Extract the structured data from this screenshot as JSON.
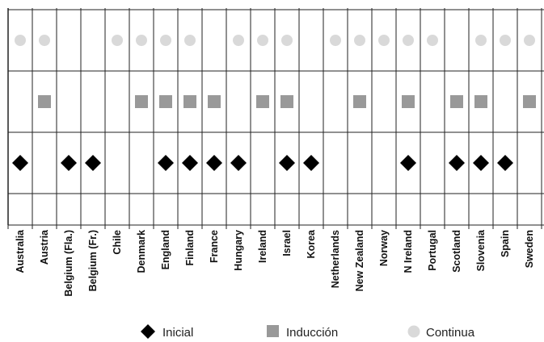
{
  "chart_data": {
    "type": "scatter",
    "categories": [
      "Australia",
      "Austria",
      "Belgium (Fla.)",
      "Belgium (Fr.)",
      "Chile",
      "Denmark",
      "England",
      "Finland",
      "France",
      "Hungary",
      "Ireland",
      "Israel",
      "Korea",
      "Netherlands",
      "New Zealand",
      "Norway",
      "N Ireland",
      "Portugal",
      "Scotland",
      "Slovenia",
      "Spain",
      "Sweden"
    ],
    "series": [
      {
        "name": "Inicial",
        "marker": "diamond",
        "color": "#000000",
        "values": [
          1,
          0,
          1,
          1,
          0,
          0,
          1,
          1,
          1,
          1,
          0,
          1,
          1,
          0,
          0,
          0,
          1,
          0,
          1,
          1,
          1,
          0
        ]
      },
      {
        "name": "Inducción",
        "marker": "square",
        "color": "#999999",
        "values": [
          0,
          1,
          0,
          0,
          0,
          1,
          1,
          1,
          1,
          0,
          1,
          1,
          0,
          0,
          1,
          0,
          1,
          0,
          1,
          1,
          0,
          1
        ]
      },
      {
        "name": "Continua",
        "marker": "circle",
        "color": "#d9d9d9",
        "values": [
          1,
          1,
          0,
          0,
          1,
          1,
          1,
          1,
          0,
          1,
          1,
          1,
          0,
          1,
          1,
          1,
          1,
          1,
          0,
          1,
          1,
          1
        ]
      }
    ],
    "legend_position": "bottom",
    "grid": true
  }
}
